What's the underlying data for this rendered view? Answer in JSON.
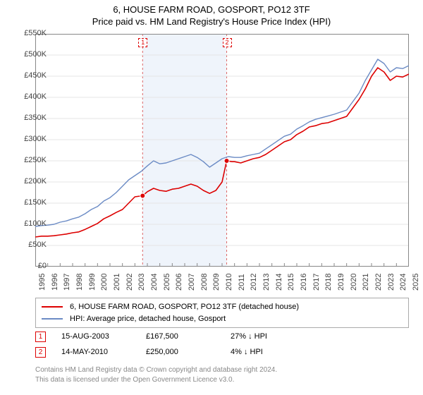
{
  "title_line1": "6, HOUSE FARM ROAD, GOSPORT, PO12 3TF",
  "title_line2": "Price paid vs. HM Land Registry's House Price Index (HPI)",
  "chart": {
    "type": "line",
    "background_color": "#ffffff",
    "grid_color": "#e4e4e4",
    "axis_color": "#888888",
    "x_start_year": 1995,
    "x_end_year": 2025,
    "xtick_step_years": 1,
    "xtick_labels": [
      "1995",
      "1996",
      "1997",
      "1998",
      "1999",
      "2000",
      "2001",
      "2002",
      "2003",
      "2004",
      "2005",
      "2006",
      "2007",
      "2008",
      "2009",
      "2010",
      "2011",
      "2012",
      "2013",
      "2014",
      "2015",
      "2016",
      "2017",
      "2018",
      "2019",
      "2020",
      "2021",
      "2022",
      "2023",
      "2024",
      "2025"
    ],
    "ylim": [
      0,
      550
    ],
    "ytick_step": 50,
    "ytick_labels": [
      "£0",
      "£50K",
      "£100K",
      "£150K",
      "£200K",
      "£250K",
      "£300K",
      "£350K",
      "£400K",
      "£450K",
      "£500K",
      "£550K"
    ],
    "highlight_band": {
      "start_year": 2003.62,
      "end_year": 2010.37,
      "fill": "#eff4fb",
      "dash_color": "#dd6666"
    },
    "series": [
      {
        "name": "price_paid",
        "label": "6, HOUSE FARM ROAD, GOSPORT, PO12 3TF (detached house)",
        "color": "#dd0000",
        "line_width": 1.6,
        "points": [
          [
            1995.0,
            70
          ],
          [
            1995.5,
            72
          ],
          [
            1996.0,
            72
          ],
          [
            1996.5,
            73
          ],
          [
            1997.0,
            75
          ],
          [
            1997.5,
            77
          ],
          [
            1998.0,
            80
          ],
          [
            1998.5,
            82
          ],
          [
            1999.0,
            88
          ],
          [
            1999.5,
            95
          ],
          [
            2000.0,
            102
          ],
          [
            2000.5,
            113
          ],
          [
            2001.0,
            120
          ],
          [
            2001.5,
            128
          ],
          [
            2002.0,
            135
          ],
          [
            2002.5,
            150
          ],
          [
            2003.0,
            165
          ],
          [
            2003.62,
            167.5
          ],
          [
            2004.0,
            177
          ],
          [
            2004.5,
            185
          ],
          [
            2005.0,
            180
          ],
          [
            2005.5,
            178
          ],
          [
            2006.0,
            183
          ],
          [
            2006.5,
            185
          ],
          [
            2007.0,
            190
          ],
          [
            2007.5,
            195
          ],
          [
            2008.0,
            190
          ],
          [
            2008.5,
            180
          ],
          [
            2009.0,
            173
          ],
          [
            2009.5,
            180
          ],
          [
            2010.0,
            200
          ],
          [
            2010.37,
            250
          ],
          [
            2010.8,
            248
          ],
          [
            2011.0,
            248
          ],
          [
            2011.5,
            245
          ],
          [
            2012.0,
            250
          ],
          [
            2012.5,
            255
          ],
          [
            2013.0,
            258
          ],
          [
            2013.5,
            265
          ],
          [
            2014.0,
            275
          ],
          [
            2014.5,
            285
          ],
          [
            2015.0,
            295
          ],
          [
            2015.5,
            300
          ],
          [
            2016.0,
            312
          ],
          [
            2016.5,
            320
          ],
          [
            2017.0,
            330
          ],
          [
            2017.5,
            333
          ],
          [
            2018.0,
            338
          ],
          [
            2018.5,
            340
          ],
          [
            2019.0,
            345
          ],
          [
            2019.5,
            350
          ],
          [
            2020.0,
            355
          ],
          [
            2020.5,
            375
          ],
          [
            2021.0,
            395
          ],
          [
            2021.5,
            420
          ],
          [
            2022.0,
            450
          ],
          [
            2022.5,
            470
          ],
          [
            2023.0,
            460
          ],
          [
            2023.5,
            440
          ],
          [
            2024.0,
            450
          ],
          [
            2024.5,
            448
          ],
          [
            2025.0,
            455
          ]
        ]
      },
      {
        "name": "hpi",
        "label": "HPI: Average price, detached house, Gosport",
        "color": "#6b8bc5",
        "line_width": 1.4,
        "points": [
          [
            1995.0,
            95
          ],
          [
            1995.5,
            97
          ],
          [
            1996.0,
            98
          ],
          [
            1996.5,
            100
          ],
          [
            1997.0,
            105
          ],
          [
            1997.5,
            108
          ],
          [
            1998.0,
            113
          ],
          [
            1998.5,
            117
          ],
          [
            1999.0,
            125
          ],
          [
            1999.5,
            135
          ],
          [
            2000.0,
            142
          ],
          [
            2000.5,
            155
          ],
          [
            2001.0,
            163
          ],
          [
            2001.5,
            175
          ],
          [
            2002.0,
            190
          ],
          [
            2002.5,
            205
          ],
          [
            2003.0,
            215
          ],
          [
            2003.5,
            225
          ],
          [
            2004.0,
            238
          ],
          [
            2004.5,
            250
          ],
          [
            2005.0,
            243
          ],
          [
            2005.5,
            245
          ],
          [
            2006.0,
            250
          ],
          [
            2006.5,
            255
          ],
          [
            2007.0,
            260
          ],
          [
            2007.5,
            265
          ],
          [
            2008.0,
            258
          ],
          [
            2008.5,
            248
          ],
          [
            2009.0,
            235
          ],
          [
            2009.5,
            245
          ],
          [
            2010.0,
            255
          ],
          [
            2010.5,
            260
          ],
          [
            2011.0,
            258
          ],
          [
            2011.5,
            258
          ],
          [
            2012.0,
            262
          ],
          [
            2012.5,
            265
          ],
          [
            2013.0,
            268
          ],
          [
            2013.5,
            278
          ],
          [
            2014.0,
            288
          ],
          [
            2014.5,
            298
          ],
          [
            2015.0,
            308
          ],
          [
            2015.5,
            313
          ],
          [
            2016.0,
            325
          ],
          [
            2016.5,
            333
          ],
          [
            2017.0,
            342
          ],
          [
            2017.5,
            348
          ],
          [
            2018.0,
            352
          ],
          [
            2018.5,
            356
          ],
          [
            2019.0,
            360
          ],
          [
            2019.5,
            365
          ],
          [
            2020.0,
            370
          ],
          [
            2020.5,
            390
          ],
          [
            2021.0,
            410
          ],
          [
            2021.5,
            440
          ],
          [
            2022.0,
            465
          ],
          [
            2022.5,
            490
          ],
          [
            2023.0,
            480
          ],
          [
            2023.5,
            460
          ],
          [
            2024.0,
            470
          ],
          [
            2024.5,
            468
          ],
          [
            2025.0,
            475
          ]
        ]
      }
    ],
    "sale_markers": [
      {
        "n": "1",
        "year": 2003.62,
        "value": 167.5
      },
      {
        "n": "2",
        "year": 2010.37,
        "value": 250
      }
    ]
  },
  "legend": {
    "items": [
      {
        "color": "#dd0000",
        "text": "6, HOUSE FARM ROAD, GOSPORT, PO12 3TF (detached house)"
      },
      {
        "color": "#6b8bc5",
        "text": "HPI: Average price, detached house, Gosport"
      }
    ]
  },
  "sales": [
    {
      "n": "1",
      "date": "15-AUG-2003",
      "price": "£167,500",
      "delta": "27% ↓ HPI"
    },
    {
      "n": "2",
      "date": "14-MAY-2010",
      "price": "£250,000",
      "delta": "4% ↓ HPI"
    }
  ],
  "footer_line1": "Contains HM Land Registry data © Crown copyright and database right 2024.",
  "footer_line2": "This data is licensed under the Open Government Licence v3.0."
}
